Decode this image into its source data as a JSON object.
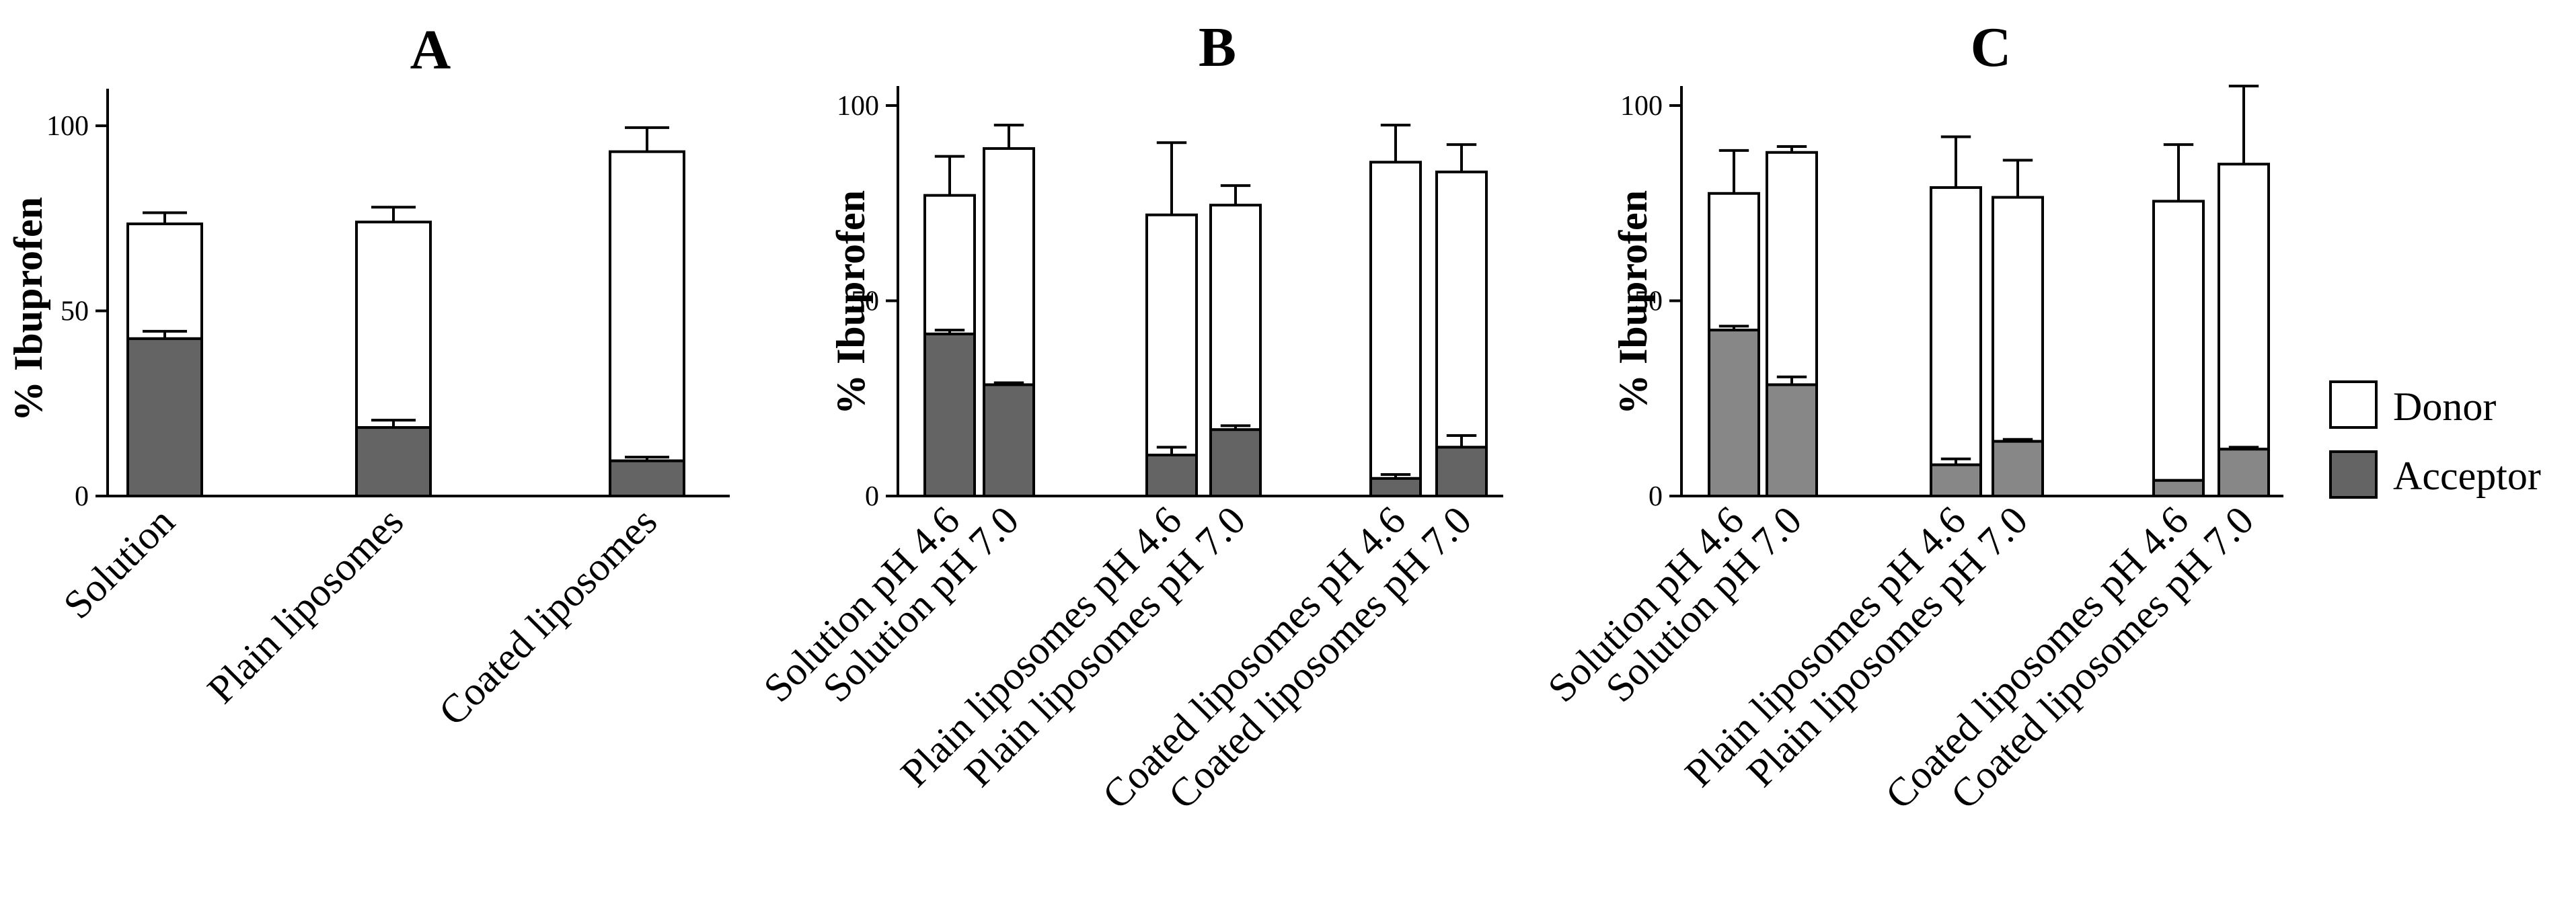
{
  "chart_data": [
    {
      "type": "bar",
      "stacked": true,
      "title": "A",
      "ylabel": "% Ibuprofen",
      "xlabel": "",
      "ylim": [
        0,
        110
      ],
      "yticks": [
        0,
        50,
        100
      ],
      "categories": [
        "Solution",
        "Plain liposomes",
        "Coated liposomes"
      ],
      "series": [
        {
          "name": "Acceptor",
          "values": [
            42.5,
            18.5,
            9.5
          ],
          "errors": [
            2,
            2,
            1
          ]
        },
        {
          "name": "Donor",
          "values": [
            31,
            55.5,
            83.5
          ],
          "errors": [
            3,
            4,
            6.5
          ]
        }
      ]
    },
    {
      "type": "bar",
      "stacked": true,
      "title": "B",
      "ylabel": "% Ibuprofen",
      "xlabel": "",
      "ylim": [
        0,
        105
      ],
      "yticks": [
        0,
        50,
        100
      ],
      "categories": [
        "Solution pH 4.6",
        "Solution pH 7.0",
        "Plain liposomes pH 4.6",
        "Plain liposomes pH 7.0",
        "Coated liposomes pH 4.6",
        "Coated liposomes pH 7.0"
      ],
      "series": [
        {
          "name": "Acceptor",
          "values": [
            41.5,
            28.5,
            10.5,
            17,
            4.5,
            12.5
          ],
          "errors": [
            1,
            0.5,
            2,
            1,
            1,
            3
          ]
        },
        {
          "name": "Donor",
          "values": [
            35.5,
            60.5,
            61.5,
            57.5,
            81,
            70.5
          ],
          "errors": [
            10,
            6,
            18.5,
            5,
            9.5,
            7
          ]
        }
      ]
    },
    {
      "type": "bar",
      "stacked": true,
      "title": "C",
      "ylabel": "% Ibuprofen",
      "xlabel": "",
      "ylim": [
        0,
        105
      ],
      "yticks": [
        0,
        50,
        100
      ],
      "categories": [
        "Solution pH 4.6",
        "Solution pH 7.0",
        "Plain liposomes pH 4.6",
        "Plain liposomes pH 7.0",
        "Coated liposomes pH 4.6",
        "Coated liposomes pH 7.0"
      ],
      "series": [
        {
          "name": "Acceptor",
          "values": [
            42.5,
            28.5,
            8,
            14,
            4,
            12
          ],
          "errors": [
            1,
            2,
            1.5,
            0.5,
            0,
            0.5
          ]
        },
        {
          "name": "Donor",
          "values": [
            35,
            59.5,
            71,
            62.5,
            71.5,
            73
          ],
          "errors": [
            11,
            1.5,
            13,
            9.5,
            14.5,
            20
          ]
        }
      ]
    }
  ],
  "legend": {
    "position": "right",
    "items": [
      {
        "label": "Donor",
        "color": "#ffffff"
      },
      {
        "label": "Acceptor",
        "color": "#646464"
      }
    ]
  },
  "colors": {
    "donor": "#ffffff",
    "acceptor_dark": "#646464",
    "acceptor_light": "#878787",
    "stroke": "#000000"
  }
}
